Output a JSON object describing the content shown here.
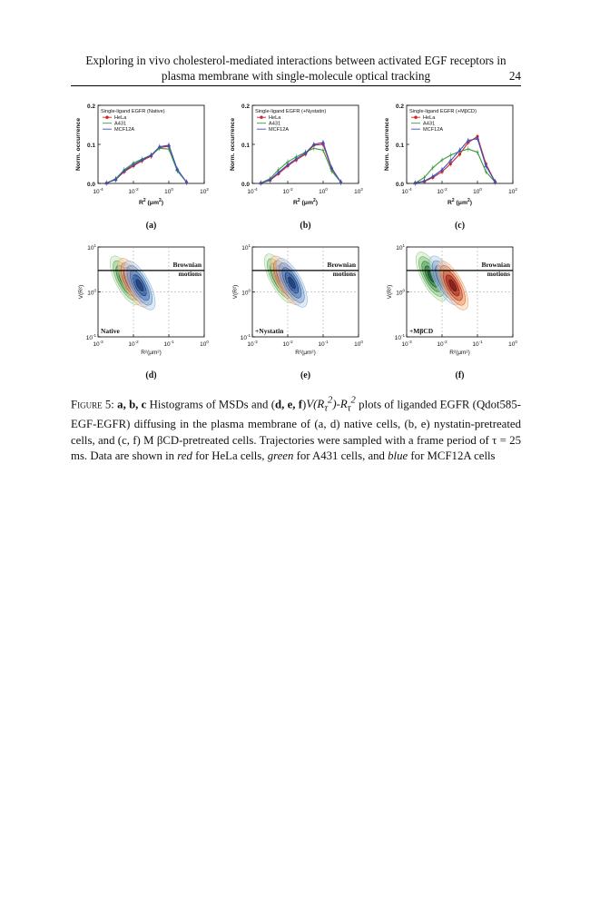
{
  "header": {
    "line1": "Exploring in vivo cholesterol-mediated interactions between activated EGF receptors in",
    "line2": "plasma membrane with single-molecule optical tracking",
    "page_number": "24"
  },
  "colors": {
    "HeLa": "#d62020",
    "A431": "#3a9a3a",
    "MCF12A": "#3c4fbf"
  },
  "top_panels": [
    {
      "label": "(a)",
      "legend_title": "Single-ligand EGFR (Native)"
    },
    {
      "label": "(b)",
      "legend_title": "Single-ligand EGFR (+Nystatin)"
    },
    {
      "label": "(c)",
      "legend_title": "Single-ligand EGFR (+MβCD)"
    }
  ],
  "legend_items": [
    "HeLa",
    "A431",
    "MCF12A"
  ],
  "top_axes": {
    "ylabel": "Norm. occurrence",
    "xlabel_base": "R",
    "xlabel_sup": "2",
    "xlabel_unit": " (μm",
    "xlabel_unit_sup": "2",
    "xlabel_close": ")",
    "yticks": [
      "0.0",
      "0.1",
      "0.2"
    ],
    "xticks": [
      {
        "base": "10",
        "exp": "-4"
      },
      {
        "base": "10",
        "exp": "-2"
      },
      {
        "base": "10",
        "exp": "0"
      },
      {
        "base": "10",
        "exp": "2"
      }
    ]
  },
  "bottom_panels": [
    {
      "label": "(d)",
      "condition": "Native",
      "annotation_line1": "Brownian",
      "annotation_line2": "motions"
    },
    {
      "label": "(e)",
      "condition": "+Nystatin",
      "annotation_line1": "Brownian",
      "annotation_line2": "motions"
    },
    {
      "label": "(f)",
      "condition": "+MβCD",
      "annotation_line1": "Brownian",
      "annotation_line2": "motions"
    }
  ],
  "bottom_axes": {
    "ylabel": "V(R²)",
    "xlabel": "R²(μm²)",
    "yticks": [
      {
        "base": "10",
        "exp": "1"
      },
      {
        "base": "10",
        "exp": "0"
      },
      {
        "base": "10",
        "exp": "-1"
      }
    ],
    "xticks": [
      {
        "base": "10",
        "exp": "-3"
      },
      {
        "base": "10",
        "exp": "-2"
      },
      {
        "base": "10",
        "exp": "-1"
      },
      {
        "base": "10",
        "exp": "0"
      }
    ]
  },
  "chart_data": [
    {
      "type": "line",
      "title": "Single-ligand EGFR (Native)",
      "xlabel": "R² (μm²)",
      "ylabel": "Norm. occurrence",
      "x_scale": "log",
      "xlim": [
        0.0001,
        100
      ],
      "ylim": [
        0,
        0.2
      ],
      "x": [
        0.0003,
        0.001,
        0.003,
        0.01,
        0.03,
        0.1,
        0.3,
        1,
        3,
        10
      ],
      "series": [
        {
          "name": "HeLa",
          "values": [
            0.001,
            0.01,
            0.03,
            0.045,
            0.058,
            0.07,
            0.092,
            0.095,
            0.035,
            0.003
          ]
        },
        {
          "name": "A431",
          "values": [
            0.001,
            0.012,
            0.035,
            0.052,
            0.062,
            0.073,
            0.09,
            0.088,
            0.032,
            0.003
          ]
        },
        {
          "name": "MCF12A",
          "values": [
            0.001,
            0.01,
            0.032,
            0.048,
            0.06,
            0.072,
            0.094,
            0.098,
            0.036,
            0.003
          ]
        }
      ]
    },
    {
      "type": "line",
      "title": "Single-ligand EGFR (+Nystatin)",
      "xlabel": "R² (μm²)",
      "ylabel": "Norm. occurrence",
      "x_scale": "log",
      "xlim": [
        0.0001,
        100
      ],
      "ylim": [
        0,
        0.2
      ],
      "x": [
        0.0003,
        0.001,
        0.003,
        0.01,
        0.03,
        0.1,
        0.3,
        1,
        3,
        10
      ],
      "series": [
        {
          "name": "HeLa",
          "values": [
            0.001,
            0.008,
            0.025,
            0.045,
            0.06,
            0.075,
            0.098,
            0.1,
            0.038,
            0.003
          ]
        },
        {
          "name": "A431",
          "values": [
            0.001,
            0.012,
            0.035,
            0.055,
            0.068,
            0.08,
            0.09,
            0.085,
            0.032,
            0.003
          ]
        },
        {
          "name": "MCF12A",
          "values": [
            0.001,
            0.009,
            0.028,
            0.048,
            0.063,
            0.078,
            0.1,
            0.105,
            0.04,
            0.003
          ]
        }
      ]
    },
    {
      "type": "line",
      "title": "Single-ligand EGFR (+MβCD)",
      "xlabel": "R² (μm²)",
      "ylabel": "Norm. occurrence",
      "x_scale": "log",
      "xlim": [
        0.0001,
        100
      ],
      "ylim": [
        0,
        0.2
      ],
      "x": [
        0.0003,
        0.001,
        0.003,
        0.01,
        0.03,
        0.1,
        0.3,
        1,
        3,
        10
      ],
      "series": [
        {
          "name": "HeLa",
          "values": [
            0.001,
            0.005,
            0.015,
            0.03,
            0.05,
            0.075,
            0.105,
            0.12,
            0.05,
            0.004
          ]
        },
        {
          "name": "A431",
          "values": [
            0.001,
            0.015,
            0.04,
            0.06,
            0.072,
            0.082,
            0.088,
            0.08,
            0.03,
            0.003
          ]
        },
        {
          "name": "MCF12A",
          "values": [
            0.001,
            0.006,
            0.018,
            0.035,
            0.058,
            0.085,
            0.11,
            0.115,
            0.045,
            0.004
          ]
        }
      ]
    },
    {
      "type": "heatmap",
      "condition": "Native",
      "xlabel": "R²(μm²)",
      "ylabel": "V(R²)",
      "x_scale": "log",
      "y_scale": "log",
      "xlim": [
        0.001,
        1
      ],
      "ylim": [
        0.1,
        10
      ],
      "series": [
        {
          "name": "A431",
          "center": [
            0.006,
            1.8
          ]
        },
        {
          "name": "HeLa",
          "center": [
            0.01,
            1.6
          ]
        },
        {
          "name": "MCF12A",
          "center": [
            0.015,
            1.4
          ]
        }
      ]
    },
    {
      "type": "heatmap",
      "condition": "+Nystatin",
      "xlabel": "R²(μm²)",
      "ylabel": "V(R²)",
      "x_scale": "log",
      "y_scale": "log",
      "xlim": [
        0.001,
        1
      ],
      "ylim": [
        0.1,
        10
      ],
      "series": [
        {
          "name": "A431",
          "center": [
            0.006,
            2.0
          ]
        },
        {
          "name": "HeLa",
          "center": [
            0.009,
            1.8
          ]
        },
        {
          "name": "MCF12A",
          "center": [
            0.013,
            1.6
          ]
        }
      ]
    },
    {
      "type": "heatmap",
      "condition": "+MβCD",
      "xlabel": "R²(μm²)",
      "ylabel": "V(R²)",
      "x_scale": "log",
      "y_scale": "log",
      "xlim": [
        0.001,
        1
      ],
      "ylim": [
        0.1,
        10
      ],
      "series": [
        {
          "name": "A431",
          "center": [
            0.005,
            2.2
          ]
        },
        {
          "name": "MCF12A",
          "center": [
            0.012,
            1.8
          ]
        },
        {
          "name": "HeLa",
          "center": [
            0.02,
            1.4
          ]
        }
      ]
    }
  ],
  "caption": {
    "figure_label": "Figure 5:",
    "text_before": "Histograms of MSDs and (",
    "panels_abc": "a, b, c",
    "panels_def": "d, e, f",
    "formula": "V(R",
    "rest": "plots of liganded EGFR (Qdot585-EGF-EGFR) diffusing in the plasma membrane of (a, d) native cells, (b, e) nystatin-pretreated cells, and (c, f) M βCD-pretreated cells. Trajectories were sampled with a frame period of τ = 25 ms. Data are shown in",
    "red_word": "red",
    "after_red": "for HeLa cells,",
    "green_word": "green",
    "after_green": "for A431 cells, and",
    "blue_word": "blue",
    "after_blue": "for MCF12A cells"
  }
}
